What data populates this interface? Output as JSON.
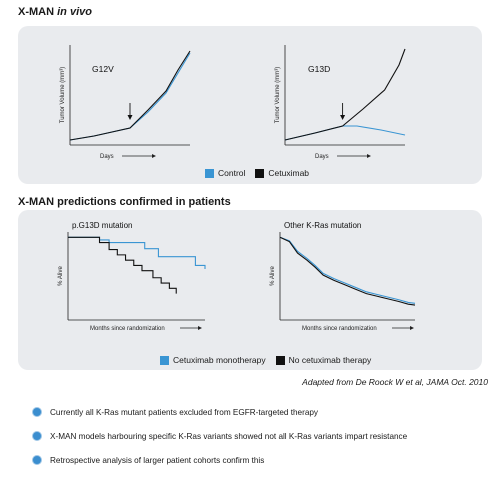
{
  "section1": {
    "title_main": "X-MAN",
    "title_italic": "in vivo"
  },
  "section2": {
    "title": "X-MAN predictions confirmed in patients"
  },
  "colors": {
    "control": "#3a95d3",
    "cetuximab": "#111111",
    "panel_bg": "#e9ebee",
    "bullet": "#3b8ecf"
  },
  "legend1": {
    "control": "Control",
    "cetuximab": "Cetuximab"
  },
  "legend2": {
    "mono": "Cetuximab monotherapy",
    "none": "No cetuximab therapy"
  },
  "credit": "Adapted from De Roock W et al, JAMA Oct. 2010",
  "bullets": [
    "Currently all K-Ras mutant patients excluded from EGFR-targeted therapy",
    "X-MAN models harbouring specific K-Ras variants showed not all K-Ras variants impart resistance",
    "Retrospective analysis of larger patient cohorts confirm this"
  ],
  "chart_data": [
    {
      "type": "line",
      "title": "G12V",
      "xlabel": "Days",
      "ylabel": "Tumor Volume (mm³)",
      "xlim": [
        0,
        10
      ],
      "ylim": [
        0,
        10
      ],
      "arrow_x": 5,
      "series": [
        {
          "name": "Control",
          "x": [
            0,
            2,
            3.5,
            5,
            6.5,
            8,
            9,
            10
          ],
          "y": [
            0.5,
            0.9,
            1.3,
            1.7,
            3.3,
            5.2,
            7.2,
            9.2
          ]
        },
        {
          "name": "Cetuximab",
          "x": [
            0,
            2,
            3.5,
            5,
            6.5,
            8,
            9,
            10
          ],
          "y": [
            0.5,
            0.9,
            1.3,
            1.7,
            3.5,
            5.4,
            7.5,
            9.4
          ]
        }
      ]
    },
    {
      "type": "line",
      "title": "G13D",
      "xlabel": "Days",
      "ylabel": "Tumor Volume (mm³)",
      "xlim": [
        0,
        10
      ],
      "ylim": [
        0,
        10
      ],
      "arrow_x": 4.8,
      "series": [
        {
          "name": "Control",
          "x": [
            0,
            2.5,
            4.8,
            6,
            8,
            10
          ],
          "y": [
            0.5,
            1.2,
            1.9,
            1.9,
            1.5,
            1.0
          ]
        },
        {
          "name": "Cetuximab",
          "x": [
            0,
            2.5,
            4.8,
            6.5,
            8.3,
            9.5,
            10
          ],
          "y": [
            0.5,
            1.2,
            1.9,
            3.6,
            5.5,
            8.0,
            9.6
          ]
        }
      ]
    },
    {
      "type": "line",
      "title": "p.G13D mutation",
      "xlabel": "Months since randomization",
      "ylabel": "% Alive",
      "xlim": [
        0,
        10
      ],
      "ylim": [
        0,
        10
      ],
      "series": [
        {
          "name": "Cetuximab monotherapy",
          "step": true,
          "x": [
            0,
            2.3,
            3.0,
            5.6,
            6.6,
            9.3,
            10
          ],
          "y": [
            9.4,
            9.1,
            8.8,
            8.1,
            7.2,
            6.2,
            5.8
          ]
        },
        {
          "name": "No cetuximab therapy",
          "step": true,
          "x": [
            0,
            2.3,
            3.0,
            3.6,
            4.2,
            4.8,
            5.4,
            6.2,
            6.8,
            7.4,
            7.9
          ],
          "y": [
            9.4,
            8.8,
            8.0,
            7.4,
            6.8,
            6.2,
            5.6,
            4.8,
            4.2,
            3.6,
            3.0
          ]
        }
      ]
    },
    {
      "type": "line",
      "title": "Other K-Ras mutation",
      "xlabel": "Months since randomization",
      "ylabel": "% Alive",
      "xlim": [
        0,
        10
      ],
      "ylim": [
        0,
        10
      ],
      "series": [
        {
          "name": "Cetuximab monotherapy",
          "x": [
            0,
            0.7,
            1.3,
            2.0,
            2.6,
            3.2,
            4.0,
            4.8,
            5.6,
            6.4,
            7.2,
            8.0,
            8.8,
            9.5,
            10
          ],
          "y": [
            9.4,
            9.0,
            7.8,
            7.0,
            6.2,
            5.3,
            4.7,
            4.2,
            3.7,
            3.2,
            2.9,
            2.6,
            2.3,
            2.0,
            1.9
          ]
        },
        {
          "name": "No cetuximab therapy",
          "x": [
            0,
            0.7,
            1.3,
            2.0,
            2.6,
            3.2,
            4.0,
            4.8,
            5.6,
            6.4,
            7.2,
            8.0,
            8.8,
            9.5,
            10
          ],
          "y": [
            9.4,
            8.9,
            7.6,
            6.8,
            6.0,
            5.1,
            4.5,
            4.0,
            3.5,
            3.0,
            2.7,
            2.4,
            2.1,
            1.8,
            1.7
          ]
        }
      ]
    }
  ]
}
